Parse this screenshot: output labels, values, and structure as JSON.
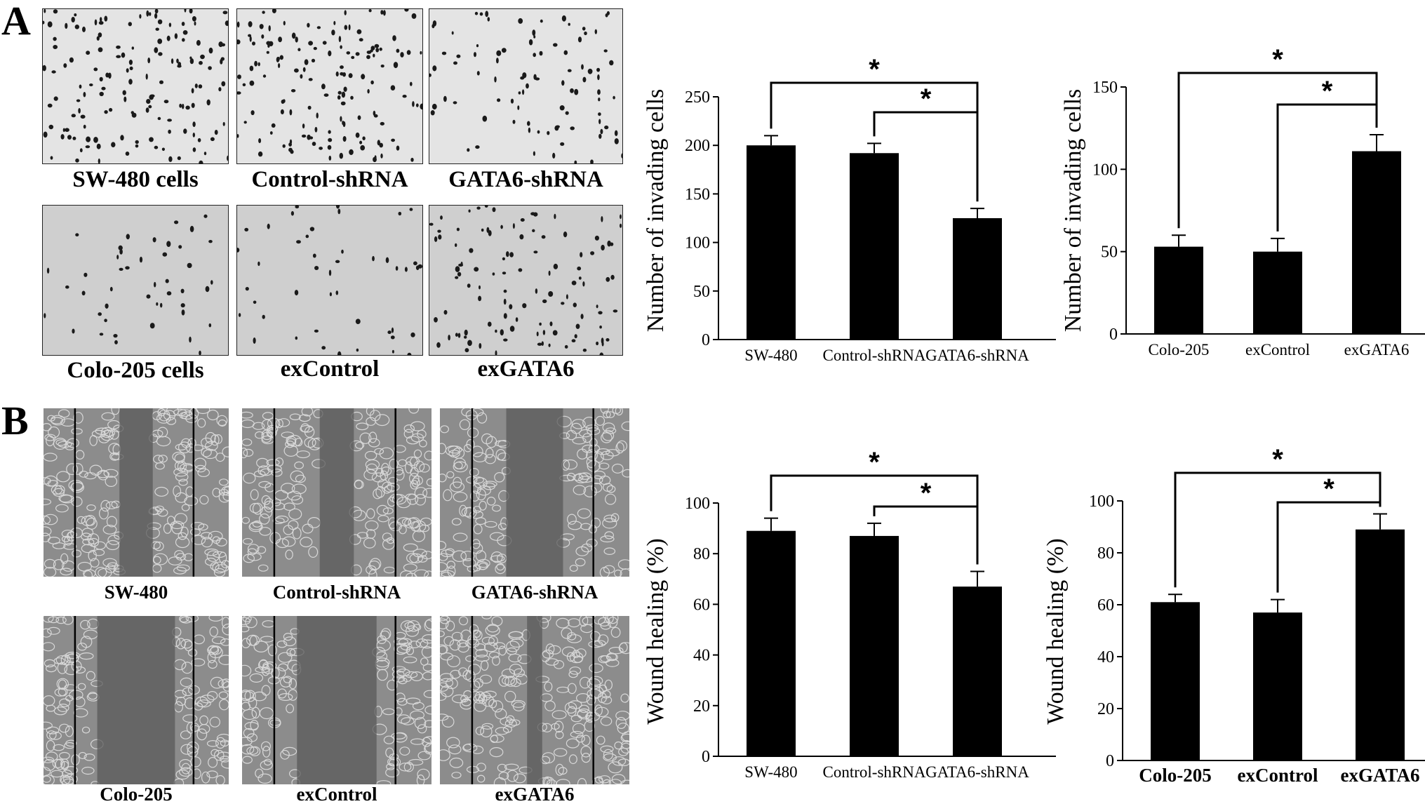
{
  "panel_labels": {
    "a": "A",
    "b": "B"
  },
  "micrographs": {
    "a_top": [
      "SW-480 cells",
      "Control-shRNA",
      "GATA6-shRNA"
    ],
    "a_bottom": [
      "Colo-205 cells",
      "exControl",
      "exGATA6"
    ],
    "b_top": [
      "SW-480",
      "Control-shRNA",
      "GATA6-shRNA"
    ],
    "b_bottom": [
      "Colo-205",
      "exControl",
      "exGATA6"
    ]
  },
  "colors": {
    "bar": "#000000",
    "invasion_bg": "#e4e4e4",
    "invasion_bg_dark": "#cfcfcf",
    "wound_bg": "#8c8c8c",
    "wound_gap": "#5a5a5a"
  },
  "chart_data": [
    {
      "type": "bar",
      "categories": [
        "SW-480",
        "Control-shRNA",
        "GATA6-shRNA"
      ],
      "values": [
        200,
        192,
        125
      ],
      "errors": [
        10,
        10,
        10
      ],
      "ylabel": "Number of invading cells",
      "ylim": [
        0,
        250
      ],
      "yticks": [
        "0",
        "50",
        "100",
        "150",
        "200",
        "250"
      ],
      "significance": [
        {
          "from": 0,
          "to": 2,
          "label": "*"
        },
        {
          "from": 1,
          "to": 2,
          "label": "*"
        }
      ]
    },
    {
      "type": "bar",
      "categories": [
        "Colo-205",
        "exControl",
        "exGATA6"
      ],
      "values": [
        53,
        50,
        111
      ],
      "errors": [
        7,
        8,
        10
      ],
      "ylabel": "Number of invading cells",
      "ylim": [
        0,
        150
      ],
      "yticks": [
        "0",
        "50",
        "100",
        "150"
      ],
      "significance": [
        {
          "from": 0,
          "to": 2,
          "label": "*"
        },
        {
          "from": 1,
          "to": 2,
          "label": "*"
        }
      ]
    },
    {
      "type": "bar",
      "categories": [
        "SW-480",
        "Control-shRNA",
        "GATA6-shRNA"
      ],
      "values": [
        89,
        87,
        67
      ],
      "errors": [
        5,
        5,
        6
      ],
      "ylabel": "Wound healing (%)",
      "ylim": [
        0,
        100
      ],
      "yticks": [
        "0",
        "20",
        "40",
        "60",
        "80",
        "100"
      ],
      "significance": [
        {
          "from": 0,
          "to": 2,
          "label": "*"
        },
        {
          "from": 1,
          "to": 2,
          "label": "*"
        }
      ]
    },
    {
      "type": "bar",
      "categories": [
        "Colo-205",
        "exControl",
        "exGATA6"
      ],
      "values": [
        61,
        57,
        89
      ],
      "errors": [
        3,
        5,
        6
      ],
      "ylabel": "Wound healing (%)",
      "ylim": [
        0,
        100
      ],
      "yticks": [
        "0",
        "20",
        "40",
        "60",
        "80",
        "100"
      ],
      "significance": [
        {
          "from": 0,
          "to": 2,
          "label": "*"
        },
        {
          "from": 1,
          "to": 2,
          "label": "*"
        }
      ]
    }
  ]
}
